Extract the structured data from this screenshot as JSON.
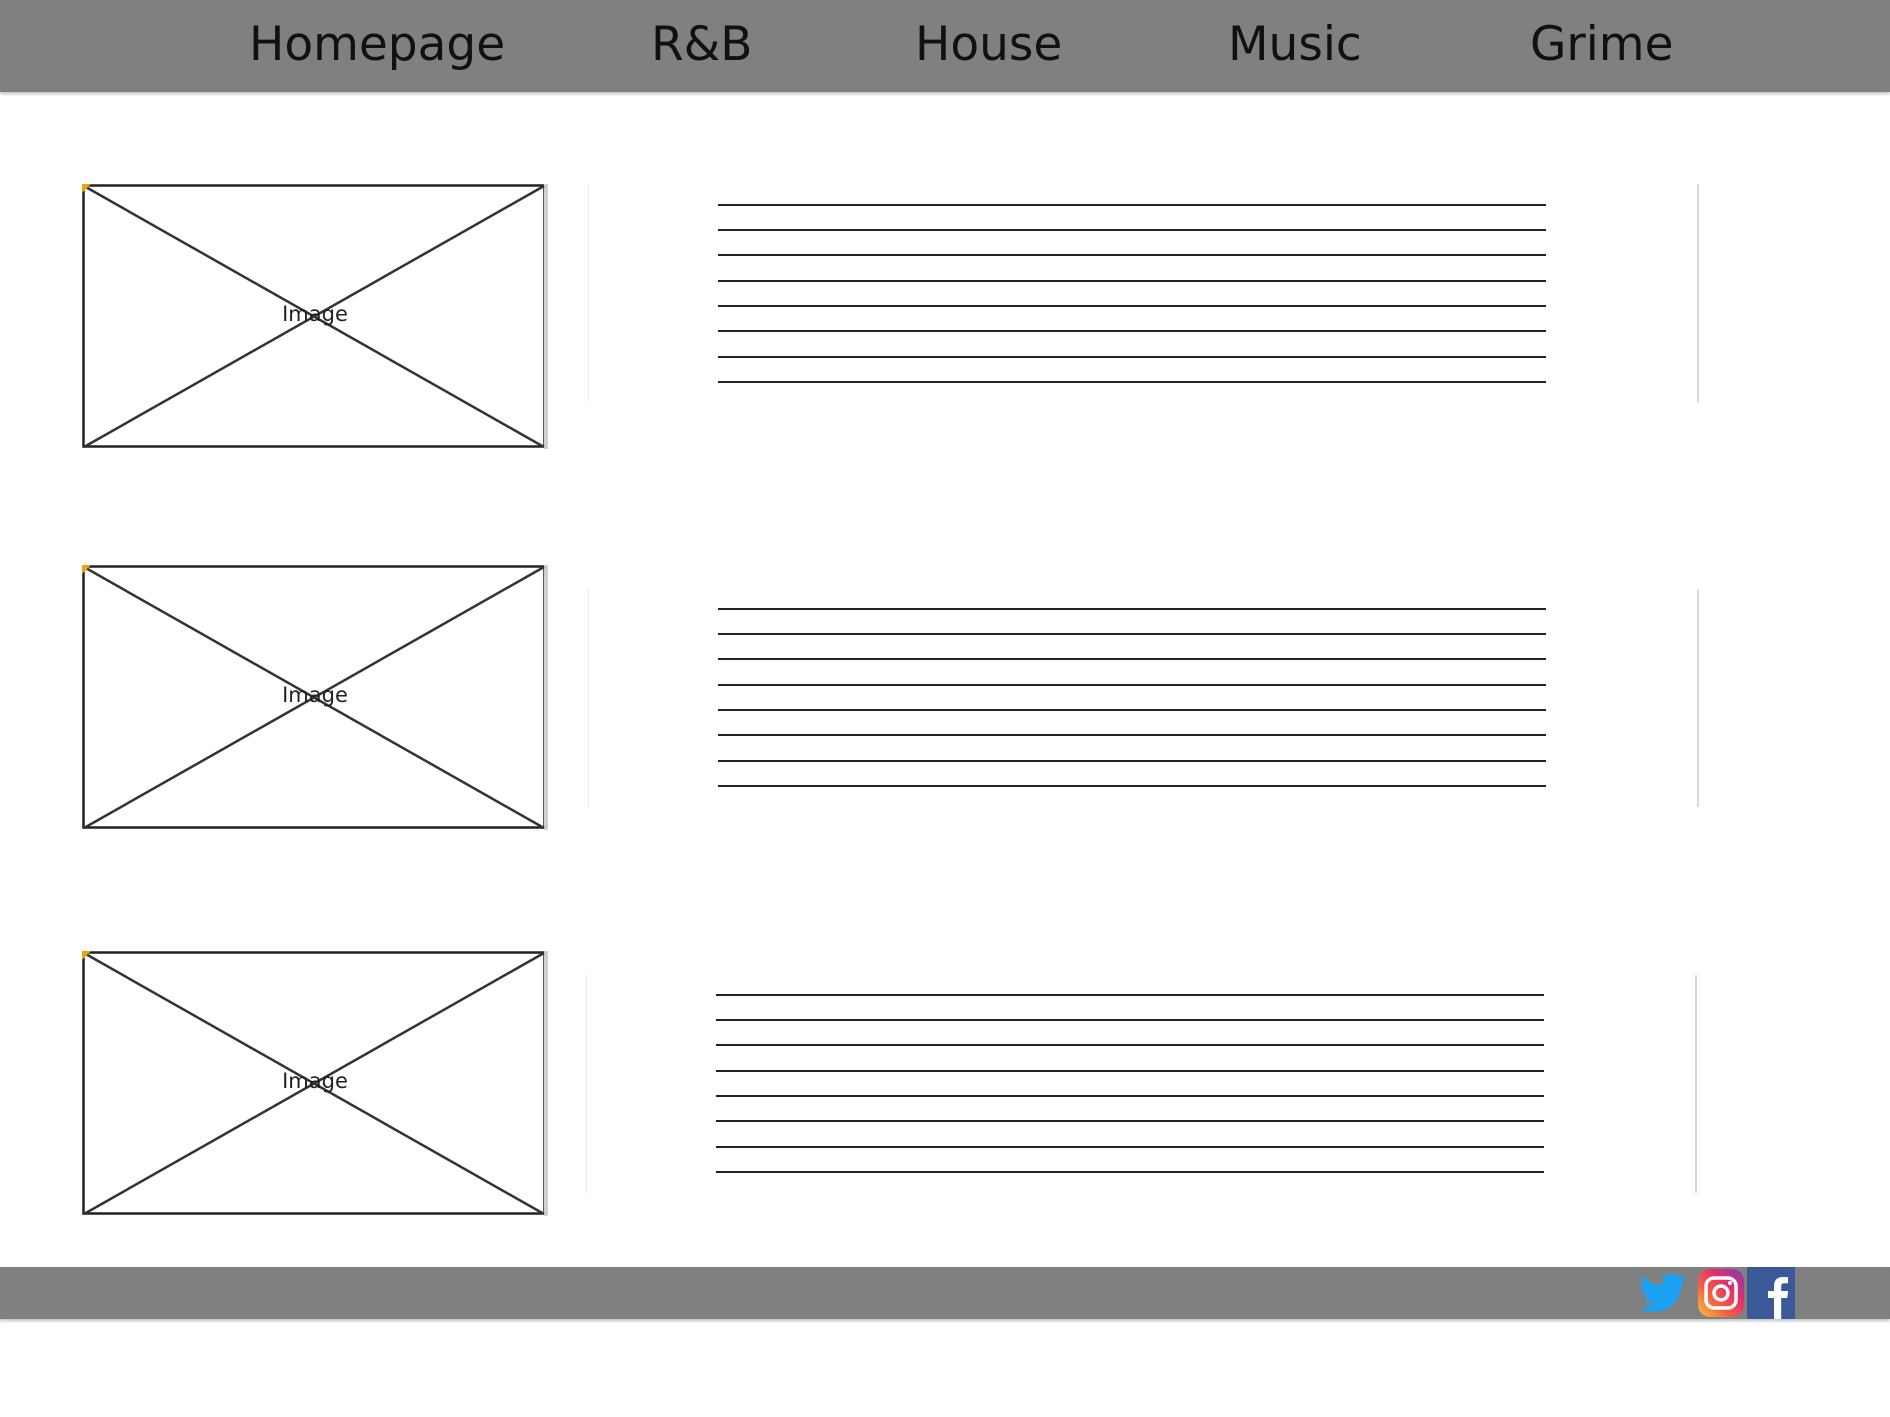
{
  "nav": {
    "items": [
      {
        "label": "Homepage"
      },
      {
        "label": "R&B"
      },
      {
        "label": "House"
      },
      {
        "label": "Music"
      },
      {
        "label": "Grime"
      }
    ]
  },
  "articles": [
    {
      "image_label": "Image"
    },
    {
      "image_label": "Image"
    },
    {
      "image_label": "Image"
    }
  ],
  "footer": {
    "social_icons": [
      "twitter-icon",
      "instagram-icon",
      "facebook-icon"
    ]
  },
  "colors": {
    "bar": "#808080",
    "twitter": "#1da1f2",
    "facebook": "#3b5998",
    "placeholder_corner": "#e8a317"
  }
}
